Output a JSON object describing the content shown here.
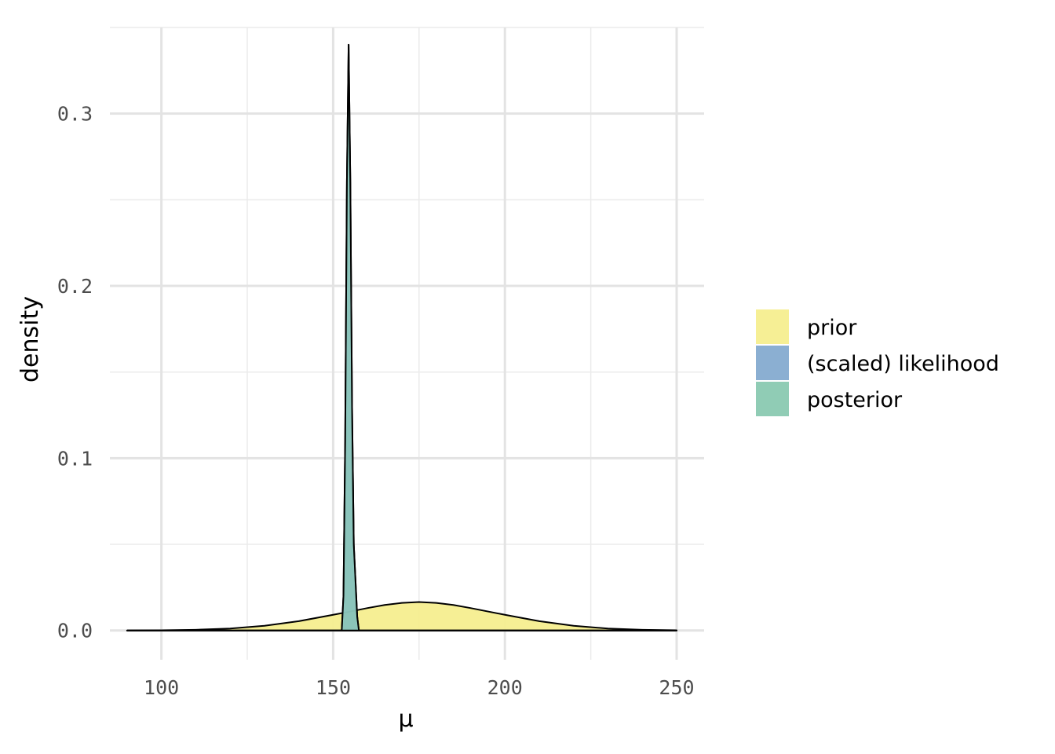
{
  "chart_data": {
    "type": "area",
    "xlabel": "μ",
    "ylabel": "density",
    "xlim": [
      85,
      258
    ],
    "ylim": [
      -0.017,
      0.35
    ],
    "x_ticks": [
      100,
      150,
      200,
      250
    ],
    "x_tick_labels": [
      "100",
      "150",
      "200",
      "250"
    ],
    "y_ticks": [
      0.0,
      0.1,
      0.2,
      0.3
    ],
    "y_tick_labels": [
      "0.0",
      "0.1",
      "0.2",
      "0.3"
    ],
    "grid": true,
    "legend_position": "right",
    "series": [
      {
        "name": "prior",
        "color": "#f5ee8f",
        "x": [
          90,
          100,
          110,
          120,
          130,
          140,
          150,
          155,
          160,
          165,
          170,
          175,
          180,
          185,
          190,
          200,
          210,
          220,
          230,
          240,
          250
        ],
        "y": [
          0.0,
          0.0001,
          0.0004,
          0.0011,
          0.0027,
          0.0054,
          0.0091,
          0.011,
          0.013,
          0.0148,
          0.016,
          0.0165,
          0.016,
          0.0148,
          0.013,
          0.0091,
          0.0054,
          0.0027,
          0.0011,
          0.0004,
          0.0001
        ]
      },
      {
        "name": "(scaled) likelihood",
        "color": "#85abd0",
        "x": [
          90,
          152.5,
          153.0,
          153.5,
          154.0,
          154.5,
          155.0,
          155.5,
          156.0,
          157.0,
          157.5,
          250
        ],
        "y": [
          0.0,
          0.0,
          0.02,
          0.11,
          0.26,
          0.34,
          0.26,
          0.13,
          0.05,
          0.008,
          0.0,
          0.0
        ]
      },
      {
        "name": "posterior",
        "color": "#8ac9b1",
        "x": [
          90,
          152.5,
          153.0,
          153.5,
          154.0,
          154.5,
          155.0,
          155.5,
          156.0,
          157.0,
          157.5,
          250
        ],
        "y": [
          0.0,
          0.0,
          0.02,
          0.11,
          0.26,
          0.34,
          0.26,
          0.13,
          0.05,
          0.008,
          0.0,
          0.0
        ]
      }
    ]
  }
}
